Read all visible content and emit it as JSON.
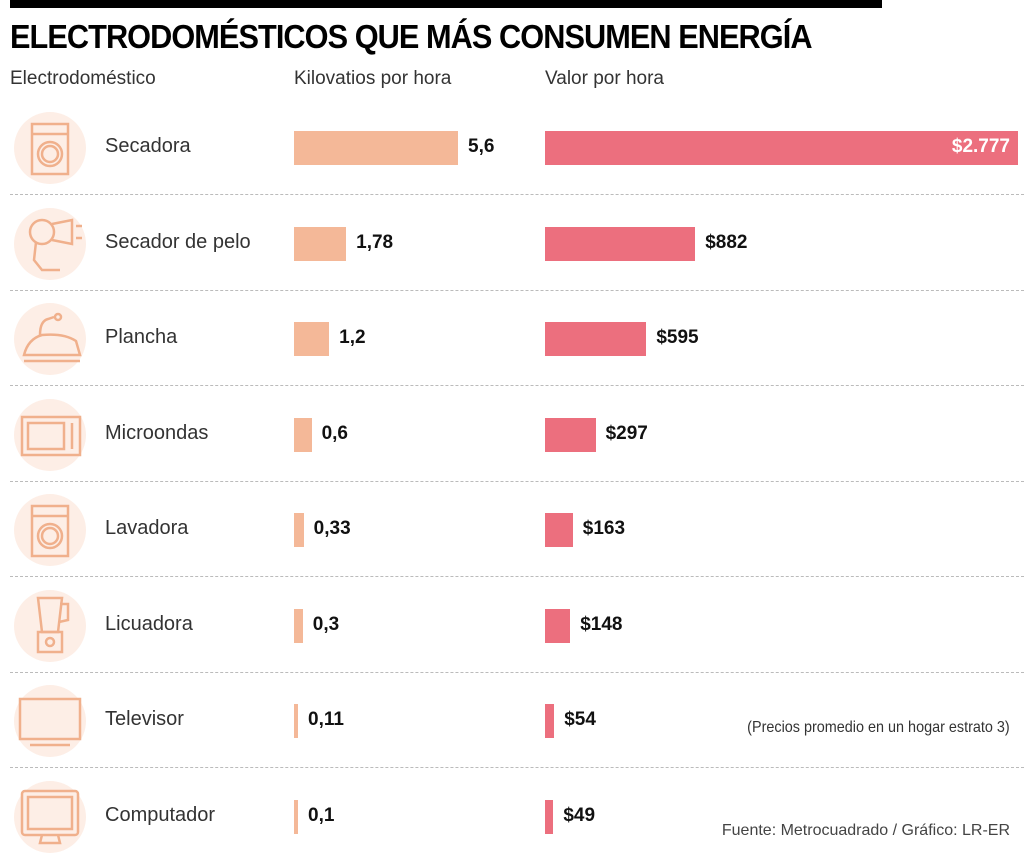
{
  "title": "ELECTRODOMÉSTICOS QUE MÁS CONSUMEN ENERGÍA",
  "headers": {
    "appliance": "Electrodoméstico",
    "kwh": "Kilovatios por hora",
    "value": "Valor por hora"
  },
  "note": "(Precios promedio en un hogar estrato 3)",
  "source": "Fuente: Metrocuadrado / Gráfico: LR-ER",
  "colors": {
    "kwh_bar": "#f4b898",
    "value_bar": "#ec6f7e",
    "icon": "#f0b08c",
    "icon_bg": "#fdeee6"
  },
  "chart_data": {
    "type": "bar",
    "title": "ELECTRODOMÉSTICOS QUE MÁS CONSUMEN ENERGÍA",
    "categories": [
      "Secadora",
      "Secador de pelo",
      "Plancha",
      "Microondas",
      "Lavadora",
      "Licuadora",
      "Televisor",
      "Computador"
    ],
    "icons": [
      "dryer-icon",
      "hair-dryer-icon",
      "iron-icon",
      "microwave-icon",
      "washing-machine-icon",
      "blender-icon",
      "television-icon",
      "computer-icon"
    ],
    "series": [
      {
        "name": "Kilovatios por hora",
        "values": [
          5.6,
          1.78,
          1.2,
          0.6,
          0.33,
          0.3,
          0.11,
          0.1
        ],
        "labels": [
          "5,6",
          "1,78",
          "1,2",
          "0,6",
          "0,33",
          "0,3",
          "0,11",
          "0,1"
        ]
      },
      {
        "name": "Valor por hora",
        "values": [
          2777,
          882,
          595,
          297,
          163,
          148,
          54,
          49
        ],
        "labels": [
          "$2.777",
          "$882",
          "$595",
          "$297",
          "$163",
          "$148",
          "$54",
          "$49"
        ]
      }
    ]
  }
}
